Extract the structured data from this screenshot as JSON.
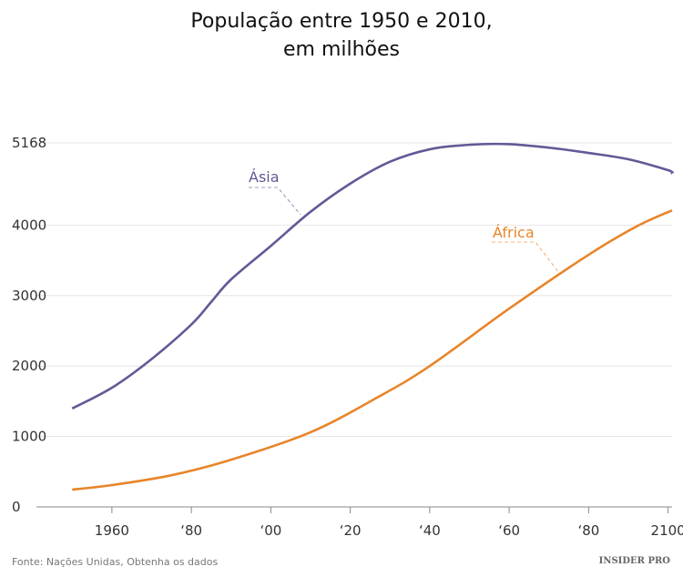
{
  "chart_data": {
    "type": "line",
    "title": [
      "População entre 1950 e 2010,",
      "em milhões"
    ],
    "xlabel": "",
    "ylabel": "",
    "xlim": [
      1941,
      2101
    ],
    "ylim": [
      0,
      5168
    ],
    "x_ticks": [
      1960,
      1980,
      2000,
      2020,
      2040,
      2060,
      2080,
      2100
    ],
    "x_tick_labels": [
      "1960",
      "‘80",
      "‘00",
      "‘20",
      "‘40",
      "‘60",
      "‘80",
      "2100"
    ],
    "y_ticks": [
      0,
      1000,
      2000,
      3000,
      4000,
      5168
    ],
    "y_tick_labels": [
      "0",
      "1000",
      "2000",
      "3000",
      "4000",
      "5168"
    ],
    "grid": true,
    "series": [
      {
        "name": "Ásia",
        "color": "#625a96",
        "x": [
          1950,
          1960,
          1970,
          1980,
          1985,
          1990,
          2000,
          2010,
          2020,
          2030,
          2040,
          2050,
          2060,
          2070,
          2080,
          2090,
          2100,
          2101
        ],
        "y": [
          1397,
          1692,
          2100,
          2590,
          2910,
          3230,
          3705,
          4190,
          4590,
          4900,
          5077,
          5141,
          5150,
          5100,
          5025,
          4935,
          4780,
          4730
        ]
      },
      {
        "name": "África",
        "color": "#e8852a",
        "x": [
          1950,
          1960,
          1975,
          1990,
          2010,
          2027,
          2040,
          2060,
          2080,
          2092,
          2101
        ],
        "y": [
          245,
          310,
          450,
          670,
          1060,
          1560,
          2000,
          2815,
          3580,
          3980,
          4210
        ]
      }
    ]
  },
  "footer": {
    "source": "Fonte: Nações Unidas, Obtenha os dados",
    "logo": "INSIDER PRO"
  }
}
